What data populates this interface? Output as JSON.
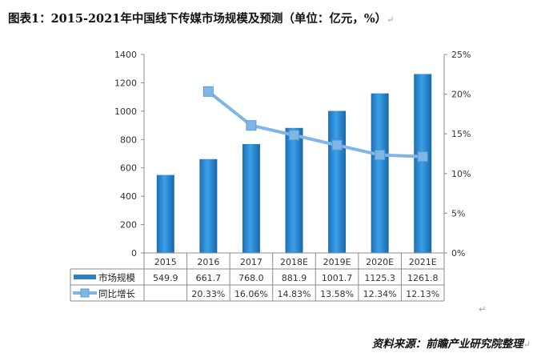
{
  "header": {
    "title": "图表1：2015-2021年中国线下传媒市场规模及预测（单位：亿元，%）",
    "title_mark": "↵"
  },
  "footer": {
    "source": "资料来源：前瞻产业研究院整理",
    "source_mark": "↵",
    "return_mark": "↵"
  },
  "chart_data": {
    "type": "bar",
    "title": "",
    "categories": [
      "2015",
      "2016",
      "2017",
      "2018E",
      "2019E",
      "2020E",
      "2021E"
    ],
    "series": [
      {
        "name": "市场规模",
        "type": "bar",
        "axis": "left",
        "values": [
          549.9,
          661.7,
          768.0,
          881.9,
          1001.7,
          1125.3,
          1261.8
        ],
        "labels": [
          "549.9",
          "661.7",
          "768.0",
          "881.9",
          "1001.7",
          "1125.3",
          "1261.8"
        ],
        "color": "#2f8fd8"
      },
      {
        "name": "同比增长",
        "type": "line",
        "axis": "right",
        "values": [
          null,
          20.33,
          16.06,
          14.83,
          13.58,
          12.34,
          12.13
        ],
        "labels": [
          "",
          "20.33%",
          "16.06%",
          "14.83%",
          "13.58%",
          "12.34%",
          "12.13%"
        ],
        "color": "#7fb6e6"
      }
    ],
    "y_left": {
      "range": [
        0,
        1400
      ],
      "ticks": [
        "0",
        "200",
        "400",
        "600",
        "800",
        "1000",
        "1200",
        "1400"
      ]
    },
    "y_right": {
      "range": [
        0,
        25
      ],
      "ticks": [
        "0%",
        "5%",
        "10%",
        "15%",
        "20%",
        "25%"
      ]
    },
    "grid": false,
    "legend": "data-table-left"
  }
}
